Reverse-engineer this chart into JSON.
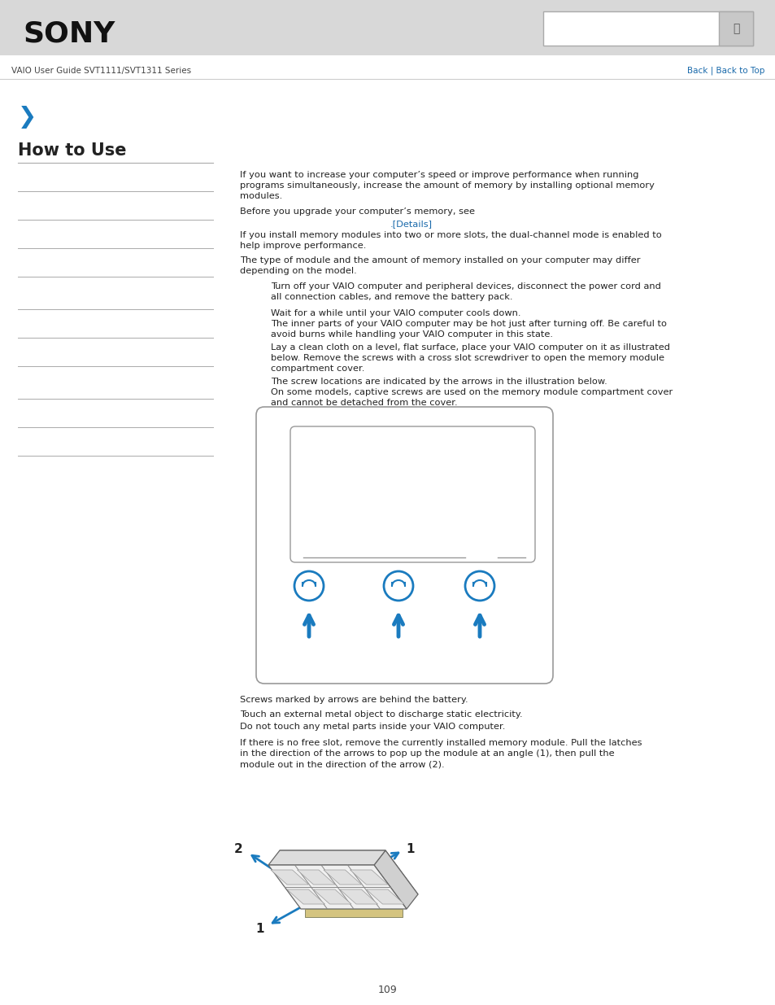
{
  "bg_color": "#ffffff",
  "header_bg": "#d8d8d8",
  "header_text": "SONY",
  "nav_text": "VAIO User Guide SVT1111/SVT1311 Series",
  "nav_link_color": "#1a6aab",
  "chevron_color": "#1a7bbf",
  "section_title": "How to Use",
  "main_text_color": "#222222",
  "link_color": "#1a6aab",
  "page_number": "109",
  "sidebar_line_color": "#aaaaaa",
  "screw_color": "#1a7bbf",
  "fig_w": 9.54,
  "fig_h": 12.35,
  "dpi": 100
}
